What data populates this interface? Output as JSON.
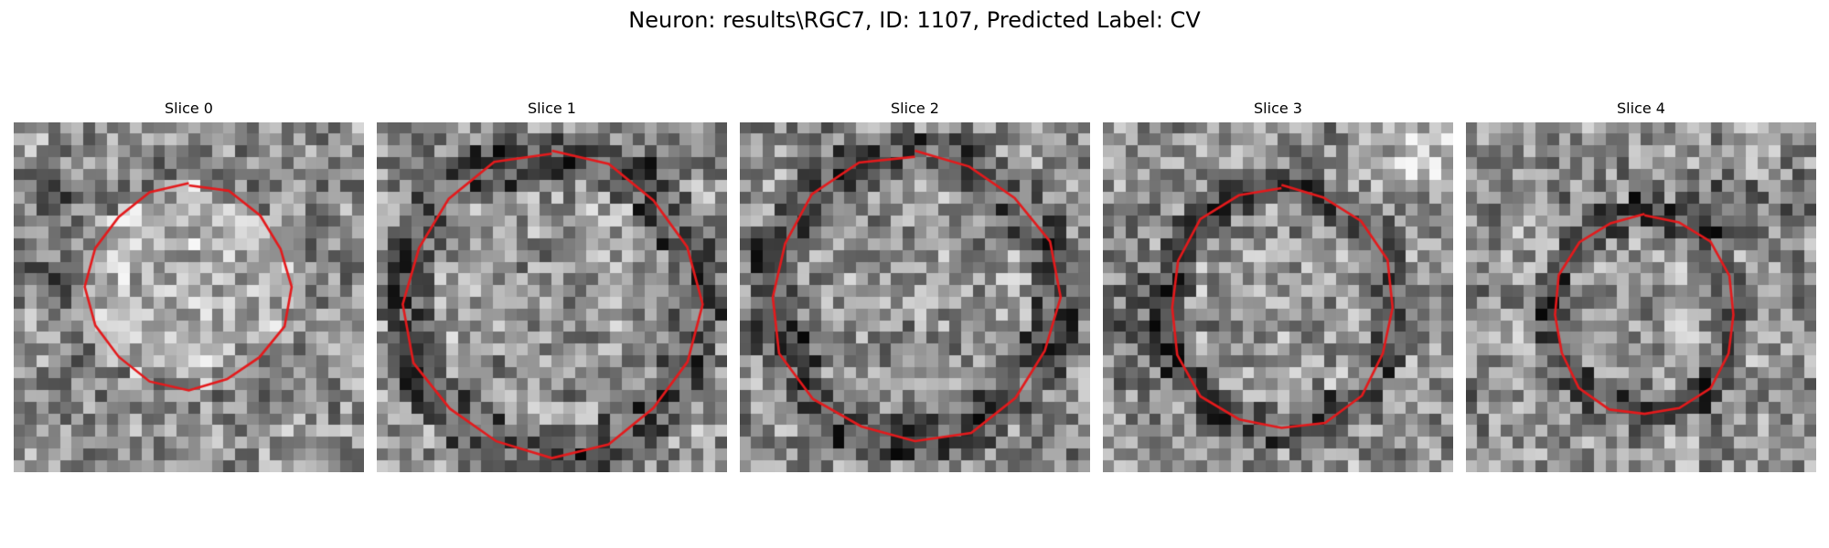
{
  "figure": {
    "title": "Neuron: results\\RGC7, ID: 1107, Predicted Label: CV"
  },
  "slices": [
    {
      "title": "Slice 0",
      "contour": "neuron-outline",
      "contour_color": "#e41a1c",
      "texture": "noisy-grayscale-patch"
    },
    {
      "title": "Slice 1",
      "contour": "neuron-outline",
      "contour_color": "#e41a1c",
      "texture": "noisy-grayscale-patch"
    },
    {
      "title": "Slice 2",
      "contour": "neuron-outline",
      "contour_color": "#e41a1c",
      "texture": "noisy-grayscale-patch"
    },
    {
      "title": "Slice 3",
      "contour": "neuron-outline",
      "contour_color": "#e41a1c",
      "texture": "noisy-grayscale-patch"
    },
    {
      "title": "Slice 4",
      "contour": "neuron-outline",
      "contour_color": "#e41a1c",
      "texture": "noisy-grayscale-patch"
    }
  ]
}
